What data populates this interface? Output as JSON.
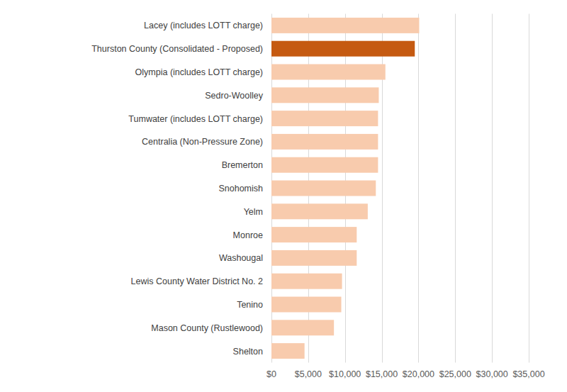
{
  "chart_data": {
    "type": "bar",
    "orientation": "horizontal",
    "categories": [
      "Lacey (includes LOTT charge)",
      "Thurston County (Consolidated - Proposed)",
      "Olympia (includes LOTT charge)",
      "Sedro-Woolley",
      "Tumwater (includes LOTT charge)",
      "Centralia (Non-Pressure Zone)",
      "Bremerton",
      "Snohomish",
      "Yelm",
      "Monroe",
      "Washougal",
      "Lewis County Water District No. 2",
      "Tenino",
      "Mason County (Rustlewood)",
      "Shelton"
    ],
    "values": [
      20100,
      19500,
      15500,
      14600,
      14500,
      14500,
      14500,
      14200,
      13100,
      11600,
      11600,
      9600,
      9500,
      8500,
      4500
    ],
    "colors": [
      "#f8cbad",
      "#c55a11",
      "#f8cbad",
      "#f8cbad",
      "#f8cbad",
      "#f8cbad",
      "#f8cbad",
      "#f8cbad",
      "#f8cbad",
      "#f8cbad",
      "#f8cbad",
      "#f8cbad",
      "#f8cbad",
      "#f8cbad",
      "#f8cbad"
    ],
    "xlim": [
      0,
      35000
    ],
    "xticks": [
      {
        "value": 0,
        "label": "$0"
      },
      {
        "value": 5000,
        "label": "$5,000"
      },
      {
        "value": 10000,
        "label": "$10,000"
      },
      {
        "value": 15000,
        "label": "$15,000"
      },
      {
        "value": 20000,
        "label": "$20,000"
      },
      {
        "value": 25000,
        "label": "$25,000"
      },
      {
        "value": 30000,
        "label": "$30,000"
      },
      {
        "value": 35000,
        "label": "$35,000"
      }
    ],
    "grid": true
  }
}
